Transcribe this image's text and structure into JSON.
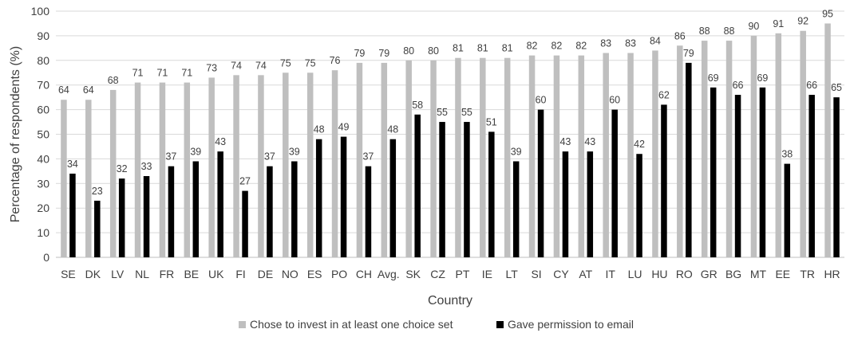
{
  "chart_data": {
    "type": "bar",
    "xlabel": "Country",
    "ylabel": "Percentage of respondents (%)",
    "ylim": [
      0,
      100
    ],
    "yticks": [
      0,
      10,
      20,
      30,
      40,
      50,
      60,
      70,
      80,
      90,
      100
    ],
    "grid": true,
    "legend_position": "bottom",
    "categories": [
      "SE",
      "DK",
      "LV",
      "NL",
      "FR",
      "BE",
      "UK",
      "FI",
      "DE",
      "NO",
      "ES",
      "PO",
      "CH",
      "Avg.",
      "SK",
      "CZ",
      "PT",
      "IE",
      "LT",
      "SI",
      "CY",
      "AT",
      "IT",
      "LU",
      "HU",
      "RO",
      "GR",
      "BG",
      "MT",
      "EE",
      "TR",
      "HR"
    ],
    "series": [
      {
        "name": "Chose to invest in at least one choice set",
        "color": "#bfbfbf",
        "values": [
          64,
          64,
          68,
          71,
          71,
          71,
          73,
          74,
          74,
          75,
          75,
          76,
          79,
          79,
          80,
          80,
          81,
          81,
          81,
          82,
          82,
          82,
          83,
          83,
          84,
          86,
          88,
          88,
          90,
          91,
          92,
          95
        ]
      },
      {
        "name": "Gave permission to email",
        "color": "#000000",
        "values": [
          34,
          23,
          32,
          33,
          37,
          39,
          43,
          27,
          37,
          39,
          48,
          49,
          37,
          48,
          58,
          55,
          55,
          51,
          39,
          60,
          43,
          43,
          60,
          42,
          62,
          79,
          69,
          66,
          69,
          38,
          66,
          65
        ]
      }
    ]
  }
}
